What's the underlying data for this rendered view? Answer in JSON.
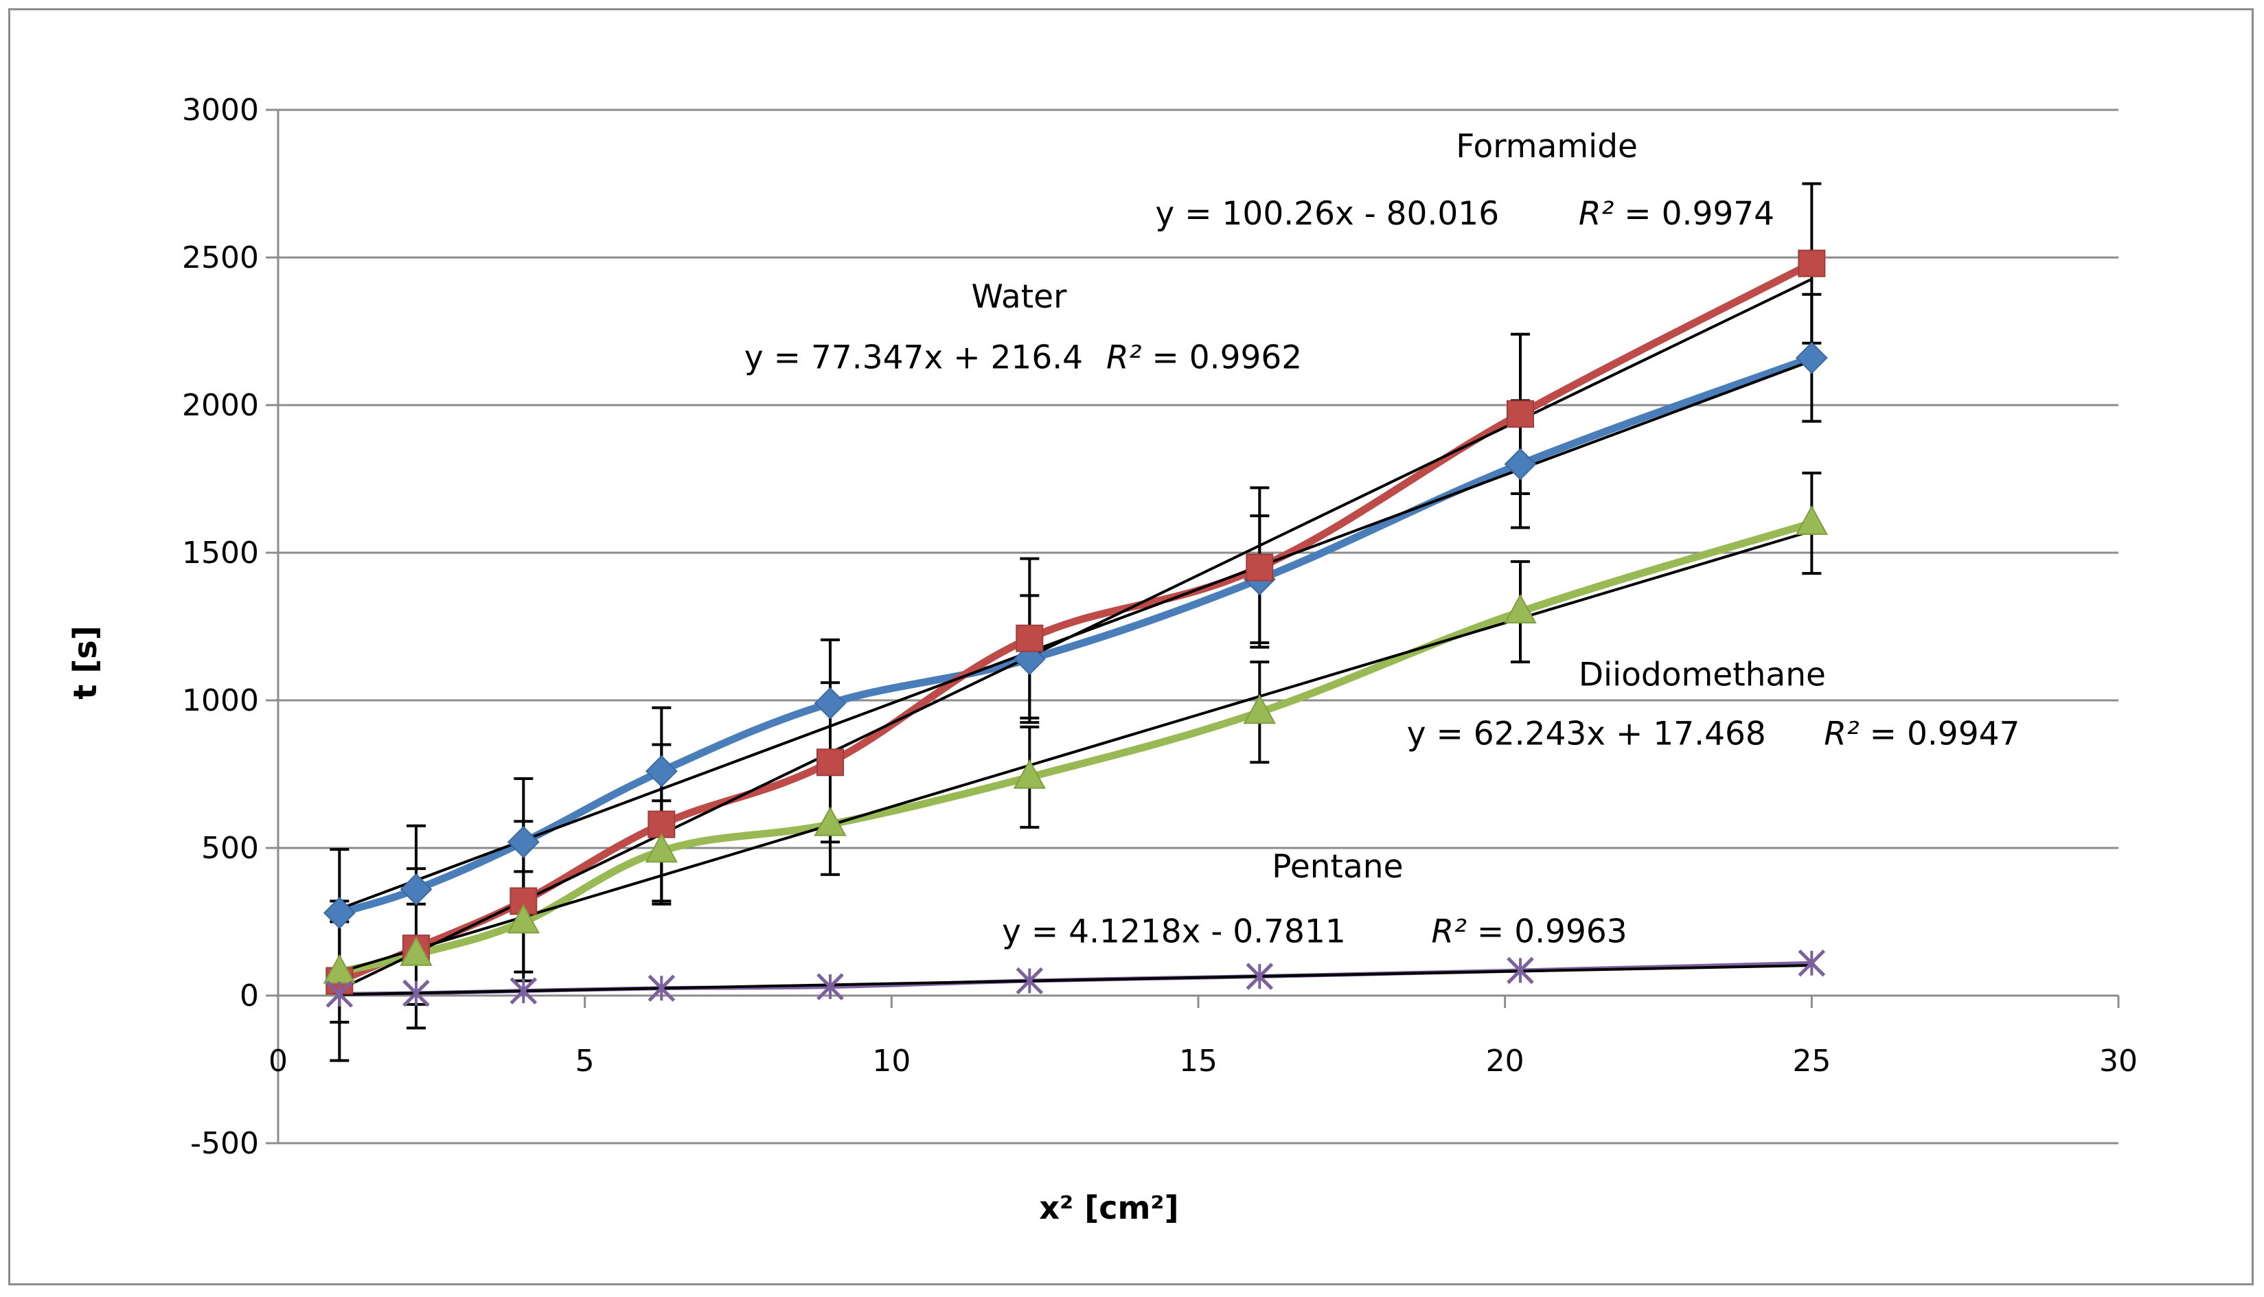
{
  "chart_data": {
    "type": "line",
    "title": "",
    "xlabel": "x² [cm²]",
    "ylabel": "t [s]",
    "xlim": [
      0,
      30
    ],
    "ylim": [
      -500,
      3000
    ],
    "xticks": [
      0,
      5,
      10,
      15,
      20,
      25,
      30
    ],
    "yticks": [
      -500,
      0,
      500,
      1000,
      1500,
      2000,
      2500,
      3000
    ],
    "xtick_labels": [
      "0",
      "5",
      "10",
      "15",
      "20",
      "25",
      "30"
    ],
    "ytick_labels": [
      "-500",
      "0",
      "500",
      "1000",
      "1500",
      "2000",
      "2500",
      "3000"
    ],
    "grid": "horizontal",
    "legend": "none",
    "series": [
      {
        "name": "Water",
        "color": "#4a7ebb",
        "marker": "diamond",
        "x": [
          1,
          2.25,
          4,
          6.25,
          9,
          12.25,
          16,
          20.25,
          25
        ],
        "y": [
          280,
          360,
          520,
          760,
          990,
          1140,
          1410,
          1800,
          2160
        ],
        "error": [
          215,
          215,
          215,
          215,
          215,
          215,
          215,
          215,
          215
        ],
        "fit": {
          "slope": 77.347,
          "intercept": 216.4
        }
      },
      {
        "name": "Formamide",
        "color": "#be4b48",
        "marker": "square",
        "x": [
          1,
          2.25,
          4,
          6.25,
          9,
          12.25,
          16,
          20.25,
          25
        ],
        "y": [
          50,
          160,
          320,
          580,
          790,
          1210,
          1450,
          1970,
          2480
        ],
        "error": [
          270,
          270,
          270,
          270,
          270,
          270,
          270,
          270,
          270
        ],
        "fit": {
          "slope": 100.26,
          "intercept": -80.016
        }
      },
      {
        "name": "Diiodomethane",
        "color": "#98b954",
        "marker": "triangle",
        "x": [
          1,
          2.25,
          4,
          6.25,
          9,
          12.25,
          16,
          20.25,
          25
        ],
        "y": [
          80,
          140,
          250,
          490,
          580,
          740,
          960,
          1300,
          1600
        ],
        "error": [
          170,
          170,
          170,
          170,
          170,
          170,
          170,
          170,
          170
        ],
        "fit": {
          "slope": 62.243,
          "intercept": 17.468
        }
      },
      {
        "name": "Pentane",
        "color": "#7d60a0",
        "marker": "x",
        "x": [
          1,
          2.25,
          4,
          6.25,
          9,
          12.25,
          16,
          20.25,
          25
        ],
        "y": [
          5,
          8,
          16,
          25,
          30,
          50,
          65,
          85,
          110
        ],
        "error": [
          0,
          0,
          0,
          0,
          0,
          0,
          0,
          0,
          0
        ],
        "fit": {
          "slope": 4.1218,
          "intercept": -0.7811
        }
      }
    ],
    "annotations": [
      {
        "name": "formamide-label",
        "text": "Formamide",
        "x": 19.2,
        "y": 2840
      },
      {
        "name": "formamide-equation",
        "text": "y = 100.26x - 80.016",
        "x": 14.3,
        "y": 2612
      },
      {
        "name": "formamide-r2",
        "text": "R² = 0.9974",
        "x": 21.2,
        "y": 2612
      },
      {
        "name": "water-label",
        "text": "Water",
        "x": 11.3,
        "y": 2330
      },
      {
        "name": "water-equation",
        "text": "y = 77.347x + 216.4",
        "x": 7.6,
        "y": 2125
      },
      {
        "name": "water-r2",
        "text": "R² = 0.9962",
        "x": 13.5,
        "y": 2125
      },
      {
        "name": "diiodomethane-label",
        "text": "Diiodomethane",
        "x": 21.2,
        "y": 1050
      },
      {
        "name": "diiodomethane-equation",
        "text": "y = 62.243x + 17.468",
        "x": 18.4,
        "y": 850
      },
      {
        "name": "diiodomethane-r2",
        "text": "R² = 0.9947",
        "x": 25.2,
        "y": 850
      },
      {
        "name": "pentane-label",
        "text": "Pentane",
        "x": 16.2,
        "y": 400
      },
      {
        "name": "pentane-equation",
        "text": "y = 4.1218x - 0.7811",
        "x": 11.8,
        "y": 180
      },
      {
        "name": "pentane-r2",
        "text": "R² = 0.9963",
        "x": 18.8,
        "y": 180
      }
    ]
  }
}
